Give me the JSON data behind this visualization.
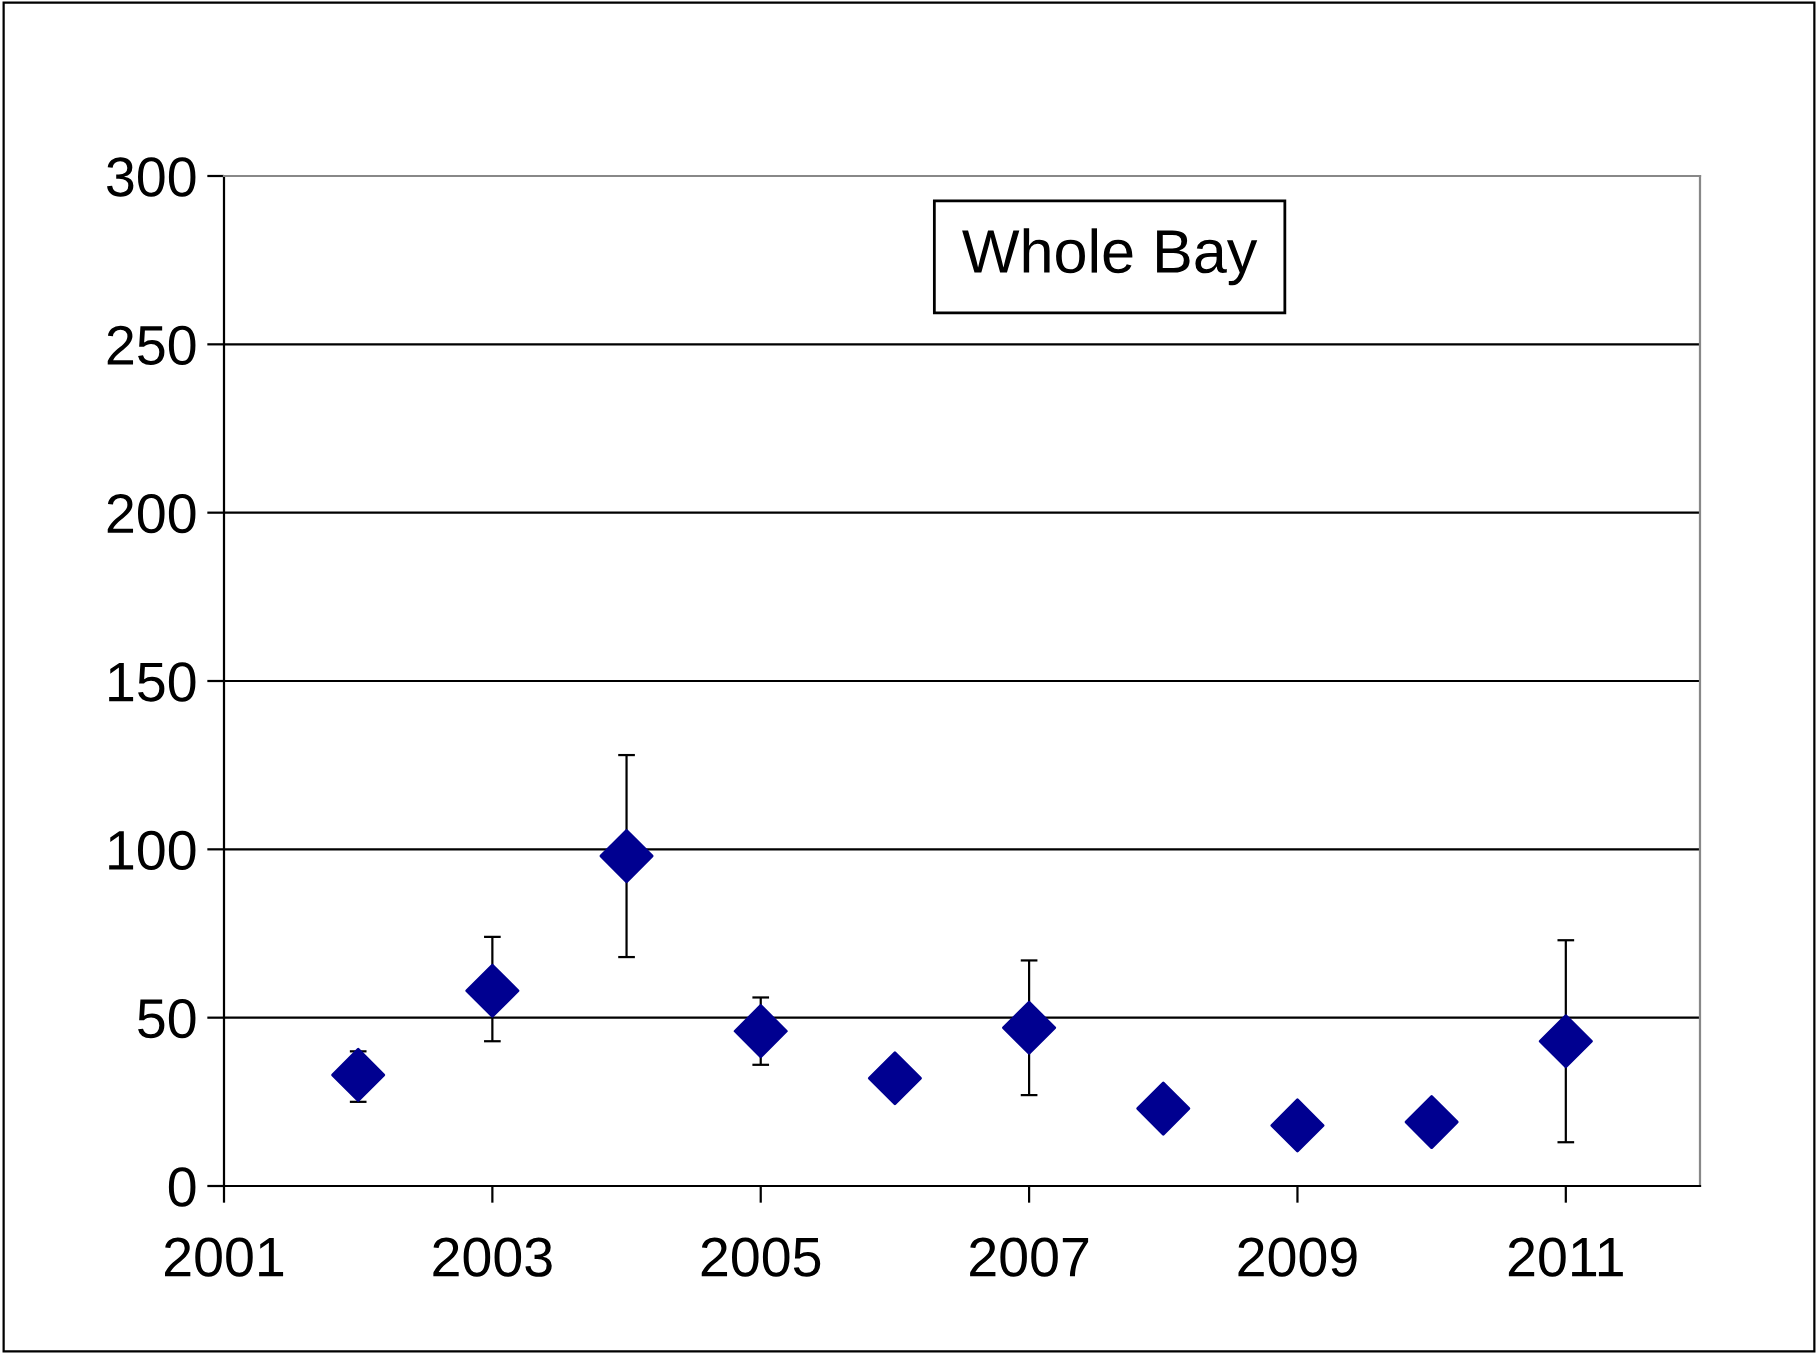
{
  "chart_data": {
    "type": "scatter",
    "title": "Whole Bay",
    "x": [
      2002,
      2003,
      2004,
      2005,
      2006,
      2007,
      2008,
      2009,
      2010,
      2011
    ],
    "values": [
      33,
      58,
      98,
      46,
      32,
      47,
      23,
      18,
      19,
      43
    ],
    "errors": [
      [
        25,
        40
      ],
      [
        43,
        74
      ],
      [
        68,
        128
      ],
      [
        36,
        56
      ],
      null,
      [
        27,
        67
      ],
      null,
      null,
      null,
      [
        13,
        73
      ]
    ],
    "color": "#000090",
    "marker": "diamond",
    "xlim": [
      2001,
      2012
    ],
    "xticks": [
      2001,
      2003,
      2005,
      2007,
      2009,
      2011
    ],
    "ylim": [
      0,
      300
    ],
    "yticks": [
      0,
      50,
      100,
      150,
      200,
      250,
      300
    ],
    "grid": "y",
    "legend": false
  }
}
